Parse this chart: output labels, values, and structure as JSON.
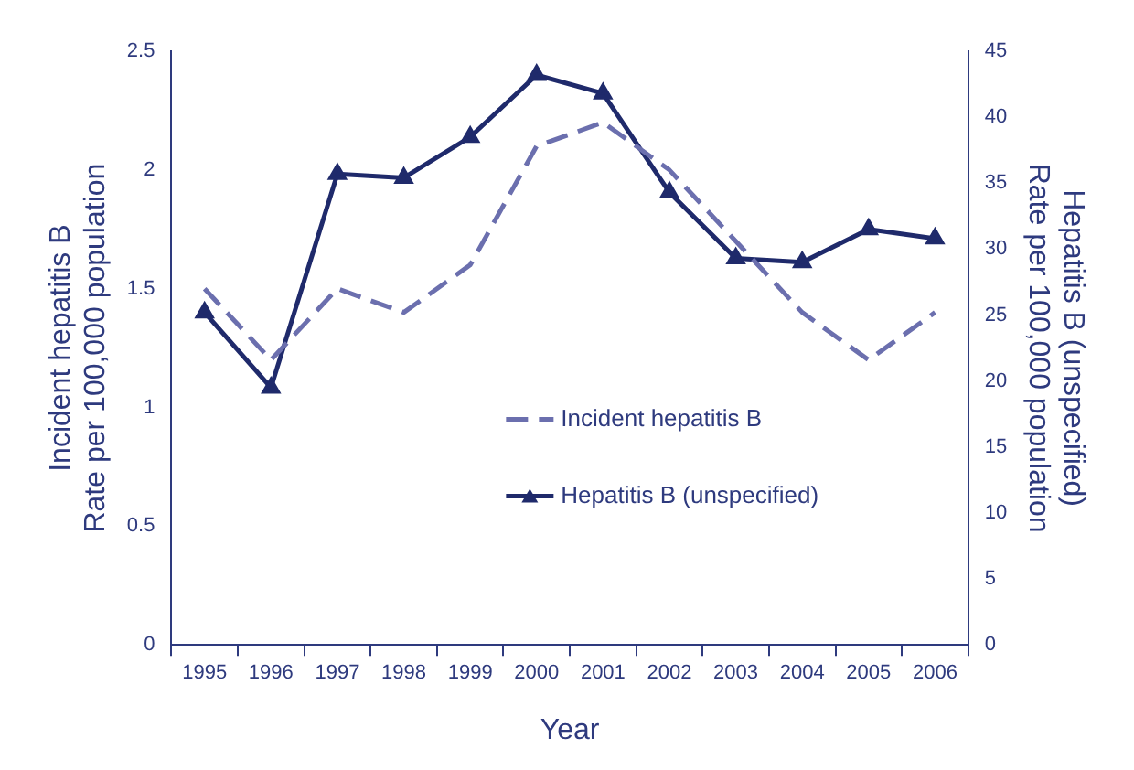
{
  "chart_data": {
    "type": "line",
    "xlabel": "Year",
    "ylabel": "Incident hepatitis B\nRate per 100,000 population",
    "y2label": "Hepatitis B (unspecified)\nRate per 100,000 population",
    "categories": [
      "1995",
      "1996",
      "1997",
      "1998",
      "1999",
      "2000",
      "2001",
      "2002",
      "2003",
      "2004",
      "2005",
      "2006"
    ],
    "series": [
      {
        "name": "Incident hepatitis B",
        "color": "#6b6fae",
        "line_style": "dashed",
        "marker": "none",
        "values": [
          1.5,
          1.2,
          1.5,
          1.4,
          1.6,
          2.1,
          2.2,
          2.0,
          1.7,
          1.4,
          1.2,
          1.4
        ]
      },
      {
        "name": "Hepatitis B (unspecified)",
        "color": "#1f2a6b",
        "line_style": "solid",
        "marker": "triangle",
        "axis": "y2",
        "values": [
          25.2,
          19.5,
          35.7,
          35.4,
          38.5,
          43.2,
          41.8,
          34.3,
          29.3,
          29.0,
          31.5,
          30.8
        ]
      }
    ],
    "ylim": [
      0,
      2.5
    ],
    "yticks": [
      0,
      0.5,
      1,
      1.5,
      2,
      2.5
    ],
    "y2lim": [
      0,
      45
    ],
    "y2ticks": [
      0,
      5,
      10,
      15,
      20,
      25,
      30,
      35,
      40,
      45
    ],
    "grid": false,
    "legend": "center"
  }
}
